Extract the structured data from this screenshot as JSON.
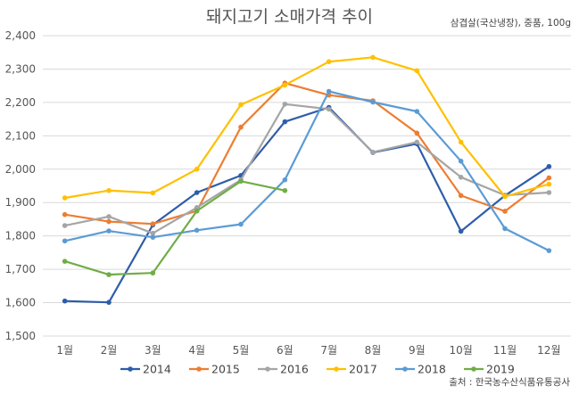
{
  "chart_data": {
    "type": "line",
    "title": "돼지고기 소매가격 추이",
    "subtitle": "삼겹살(국산냉장), 중품, 100g",
    "source": "출처 : 한국농수산식품유통공사",
    "categories": [
      "1월",
      "2월",
      "3월",
      "4월",
      "5월",
      "6월",
      "7월",
      "8월",
      "9월",
      "10월",
      "11월",
      "12월"
    ],
    "ylim": [
      1500,
      2400
    ],
    "yticks": [
      "1,500",
      "1,600",
      "1,700",
      "1,800",
      "1,900",
      "2,000",
      "2,100",
      "2,200",
      "2,300",
      "2,400"
    ],
    "grid": true,
    "legend_position": "bottom",
    "series": [
      {
        "name": "2014",
        "color": "#2E5DAA",
        "values": [
          1605,
          1601,
          1833,
          1930,
          1981,
          2142,
          2185,
          2050,
          2076,
          1814,
          1921,
          2008
        ]
      },
      {
        "name": "2015",
        "color": "#ED7D31",
        "values": [
          1864,
          1843,
          1836,
          1875,
          2126,
          2258,
          2222,
          2205,
          2108,
          1921,
          1874,
          1974
        ]
      },
      {
        "name": "2016",
        "color": "#A5A5A5",
        "values": [
          1831,
          1858,
          1808,
          1885,
          1968,
          2195,
          2180,
          2051,
          2081,
          1976,
          1922,
          1930
        ]
      },
      {
        "name": "2017",
        "color": "#FFC000",
        "values": [
          1914,
          1936,
          1929,
          2000,
          2193,
          2252,
          2322,
          2335,
          2295,
          2081,
          1918,
          1955
        ]
      },
      {
        "name": "2018",
        "color": "#5B9BD5",
        "values": [
          1785,
          1815,
          1796,
          1817,
          1835,
          1968,
          2233,
          2201,
          2173,
          2024,
          1822,
          1756
        ]
      },
      {
        "name": "2019",
        "color": "#70AD47",
        "values": [
          1724,
          1684,
          1689,
          1875,
          1964,
          1936,
          null,
          null,
          null,
          null,
          null,
          null
        ]
      }
    ]
  }
}
